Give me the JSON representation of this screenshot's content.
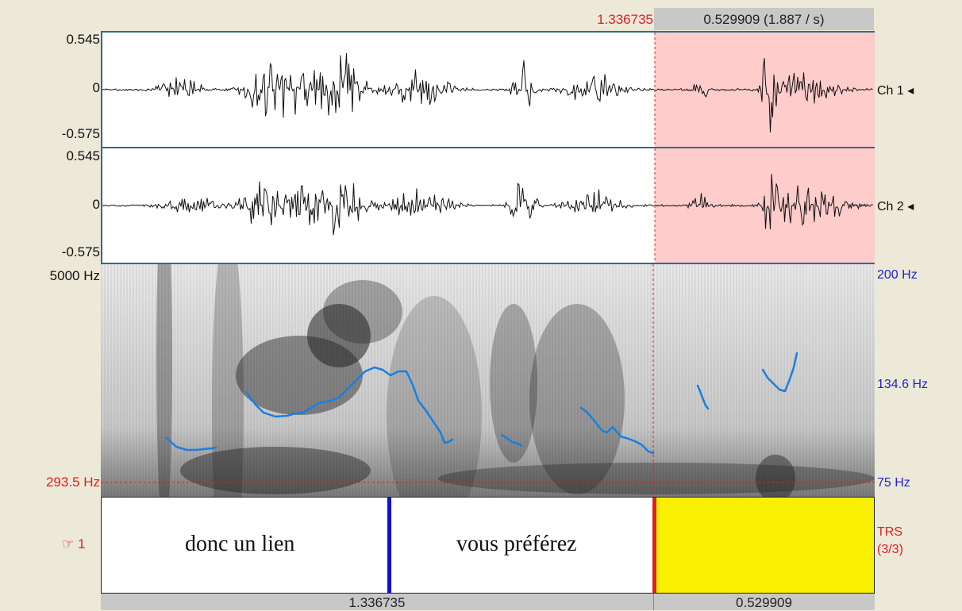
{
  "selection": {
    "start_time": "1.336735",
    "duration_label": "0.529909 (1.887 / s)"
  },
  "waveform": {
    "ch1": {
      "max_label": "0.545",
      "zero_label": "0",
      "min_label": "-0.575",
      "name": "Ch 1"
    },
    "ch2": {
      "max_label": "0.545",
      "zero_label": "0",
      "min_label": "-0.575",
      "name": "Ch 2"
    }
  },
  "spectrogram": {
    "max_freq": "5000 Hz",
    "cursor_freq": "293.5 Hz",
    "pitch_top": "200 Hz",
    "pitch_mid": "134.6 Hz",
    "pitch_bottom": "75 Hz"
  },
  "tier": {
    "number": "1",
    "interval_1": "donc un lien",
    "interval_2": "vous préférez",
    "name": "TRS",
    "index": "(3/3)"
  },
  "bottom": {
    "left_duration": "1.336735",
    "right_duration": "0.529909"
  },
  "colors": {
    "selection": "#ffcccc",
    "pitch": "#1a7fe0",
    "cursor": "#e02020",
    "tier_selected": "#f8f000",
    "boundary": "#1010d0"
  }
}
